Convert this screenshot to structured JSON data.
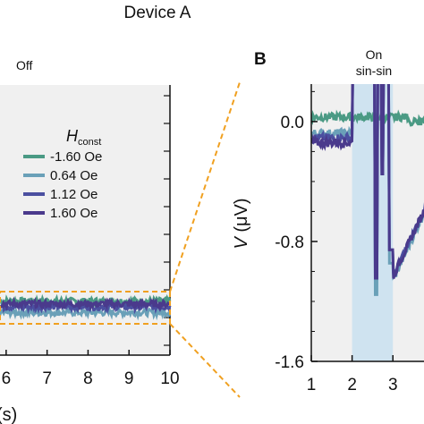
{
  "figure": {
    "title": "Device A",
    "panel_b_letter": "B",
    "zoom_color": "#f0a020"
  },
  "chart_data": [
    {
      "panel": "left",
      "type": "line",
      "state_label": "Off",
      "x_axis_fragment": "(s)",
      "x_ticks": [
        "6",
        "7",
        "8",
        "9",
        "10"
      ],
      "xlim": [
        5.85,
        10
      ],
      "ylim": [
        -1.6,
        0.3
      ],
      "legend_title_main": "H",
      "legend_title_sub": "const",
      "series": [
        {
          "name": "-1.60 Oe",
          "color": "#4a9a84",
          "offset": 0.0
        },
        {
          "name": "0.64 Oe",
          "color": "#6aa0b8",
          "offset": -0.08
        },
        {
          "name": "1.12 Oe",
          "color": "#4b4fa0",
          "offset": -0.04
        },
        {
          "name": "1.60 Oe",
          "color": "#4a3a8c",
          "offset": -0.02
        }
      ]
    },
    {
      "panel": "B",
      "type": "line",
      "state_label_line1": "On",
      "state_label_line2": "sin-sin",
      "ylabel_main": "V",
      "ylabel_unit": " (μV)",
      "x_ticks": [
        "1",
        "2",
        "3"
      ],
      "y_ticks": [
        "0.0",
        "-0.8",
        "-1.6"
      ],
      "y_tick_values": [
        0.0,
        -0.8,
        -1.6
      ],
      "xlim": [
        1,
        3.85
      ],
      "ylim": [
        -1.6,
        0.25
      ],
      "shaded_region": [
        2,
        3
      ],
      "shade_color": "#cfe3f0",
      "series": [
        {
          "name": "-1.60 Oe",
          "color": "#4a9a84"
        },
        {
          "name": "0.64 Oe",
          "color": "#6aa0b8"
        },
        {
          "name": "1.12 Oe",
          "color": "#4b4fa0"
        },
        {
          "name": "1.60 Oe",
          "color": "#4a3a8c"
        }
      ]
    }
  ]
}
